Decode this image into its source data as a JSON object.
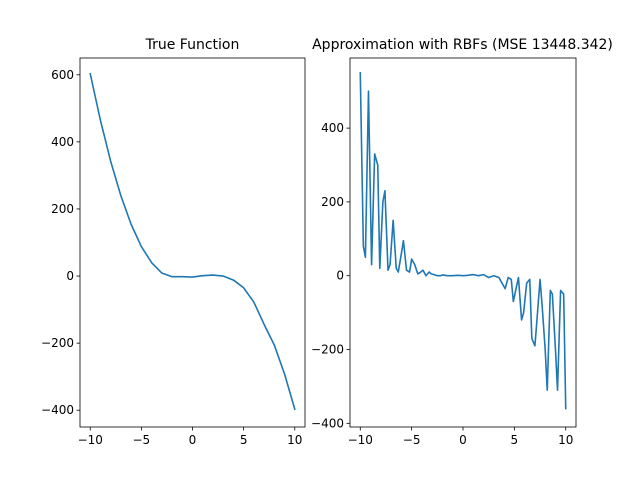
{
  "chart_data": [
    {
      "type": "line",
      "title": "True Function",
      "xlabel": "",
      "ylabel": "",
      "xlim": [
        -11,
        11
      ],
      "ylim": [
        -450,
        650
      ],
      "xticks": [
        -10,
        -5,
        0,
        5,
        10
      ],
      "yticks": [
        -400,
        -200,
        0,
        200,
        400,
        600
      ],
      "xtick_labels": [
        "−10",
        "−5",
        "0",
        "5",
        "10"
      ],
      "ytick_labels": [
        "−400",
        "−200",
        "0",
        "200",
        "400",
        "600"
      ],
      "grid": false,
      "color": "#1f77b4",
      "series": [
        {
          "x": [
            -10,
            -9,
            -8,
            -7,
            -6,
            -5,
            -4,
            -3,
            -2,
            -1,
            0,
            1,
            2,
            3,
            4,
            5,
            6,
            7,
            8,
            9,
            10
          ],
          "y": [
            603,
            464,
            342,
            239,
            154,
            88,
            40,
            9,
            -2,
            -2,
            -3,
            1,
            3,
            0,
            -12,
            -35,
            -78,
            -144,
            -206,
            -292,
            -397
          ]
        }
      ]
    },
    {
      "type": "line",
      "title": "Approximation with RBFs (MSE 13448.342)",
      "xlabel": "",
      "ylabel": "",
      "xlim": [
        -11,
        11
      ],
      "ylim": [
        -410,
        590
      ],
      "xticks": [
        -10,
        -5,
        0,
        5,
        10
      ],
      "yticks": [
        -400,
        -200,
        0,
        200,
        400
      ],
      "xtick_labels": [
        "−10",
        "−5",
        "0",
        "5",
        "10"
      ],
      "ytick_labels": [
        "−400",
        "−200",
        "0",
        "200",
        "400"
      ],
      "grid": false,
      "color": "#1f77b4",
      "series": [
        {
          "x": [
            -10,
            -9.7,
            -9.5,
            -9.2,
            -8.9,
            -8.6,
            -8.3,
            -8.1,
            -7.8,
            -7.6,
            -7.3,
            -7.1,
            -6.8,
            -6.5,
            -6.3,
            -6.0,
            -5.8,
            -5.5,
            -5.2,
            -5.0,
            -4.7,
            -4.4,
            -4.2,
            -3.9,
            -3.6,
            -3.3,
            -3.1,
            -2.8,
            -2.5,
            -2.2,
            -2.0,
            -1.5,
            -1.0,
            -0.5,
            0,
            0.5,
            1.0,
            1.5,
            2.0,
            2.5,
            3.0,
            3.5,
            3.8,
            4.1,
            4.4,
            4.7,
            4.9,
            5.2,
            5.4,
            5.7,
            5.9,
            6.2,
            6.5,
            6.7,
            7.0,
            7.2,
            7.5,
            7.7,
            8.0,
            8.2,
            8.5,
            8.7,
            9.0,
            9.2,
            9.5,
            9.8,
            10
          ],
          "y": [
            550,
            80,
            50,
            500,
            30,
            330,
            300,
            20,
            200,
            230,
            15,
            30,
            150,
            20,
            10,
            60,
            95,
            15,
            10,
            45,
            30,
            5,
            8,
            15,
            0,
            10,
            5,
            3,
            0,
            0,
            2,
            0,
            0,
            1,
            0,
            1,
            3,
            0,
            3,
            -5,
            0,
            -5,
            -20,
            -35,
            -5,
            -10,
            -70,
            -30,
            -5,
            -120,
            -100,
            -20,
            -10,
            -170,
            -190,
            -120,
            -10,
            -80,
            -200,
            -310,
            -40,
            -50,
            -200,
            -310,
            -40,
            -50,
            -360
          ]
        }
      ]
    }
  ]
}
